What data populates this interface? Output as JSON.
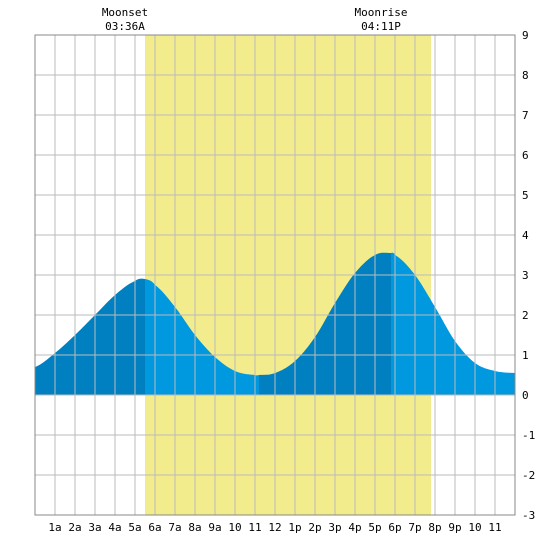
{
  "chart_data": {
    "type": "area",
    "title": "",
    "xlabel": "",
    "ylabel": "",
    "xlim": [
      0,
      24
    ],
    "ylim": [
      -3,
      9
    ],
    "grid": true,
    "x_tick_labels": [
      "1a",
      "2a",
      "3a",
      "4a",
      "5a",
      "6a",
      "7a",
      "8a",
      "9a",
      "10",
      "11",
      "12",
      "1p",
      "2p",
      "3p",
      "4p",
      "5p",
      "6p",
      "7p",
      "8p",
      "9p",
      "10",
      "11"
    ],
    "y_tick_labels": [
      "-3",
      "-2",
      "-1",
      "0",
      "1",
      "2",
      "3",
      "4",
      "5",
      "6",
      "7",
      "8",
      "9"
    ],
    "daylight_band": {
      "start_hour": 5.5,
      "end_hour": 19.8
    },
    "tide_series": {
      "name": "",
      "x": [
        0,
        1,
        2,
        3,
        4,
        5,
        5.5,
        6,
        7,
        8,
        9,
        10,
        11,
        11.2,
        12,
        13,
        14,
        15,
        16,
        17,
        17.8,
        18,
        19,
        20,
        21,
        22,
        23,
        24
      ],
      "y": [
        0.7,
        1.05,
        1.5,
        2.0,
        2.5,
        2.85,
        2.9,
        2.75,
        2.2,
        1.5,
        0.95,
        0.6,
        0.5,
        0.5,
        0.55,
        0.85,
        1.45,
        2.3,
        3.05,
        3.5,
        3.55,
        3.5,
        3.0,
        2.2,
        1.35,
        0.8,
        0.6,
        0.55
      ]
    },
    "tide_extremes": [
      {
        "label": "high",
        "hour": 5.5,
        "value": 2.9
      },
      {
        "label": "low",
        "hour": 11.2,
        "value": 0.5
      },
      {
        "label": "high",
        "hour": 17.8,
        "value": 3.55
      }
    ],
    "annotations": [
      {
        "title": "Moonset",
        "time": "03:36A",
        "hour": 3.6
      },
      {
        "title": "Moonrise",
        "time": "04:11P",
        "hour": 16.18
      }
    ],
    "colors": {
      "daylight": "#f2ec8c",
      "tide_rising": "#0080c0",
      "tide_falling": "#0099e0",
      "grid": "#bbbbbb",
      "frame": "#888888"
    }
  }
}
